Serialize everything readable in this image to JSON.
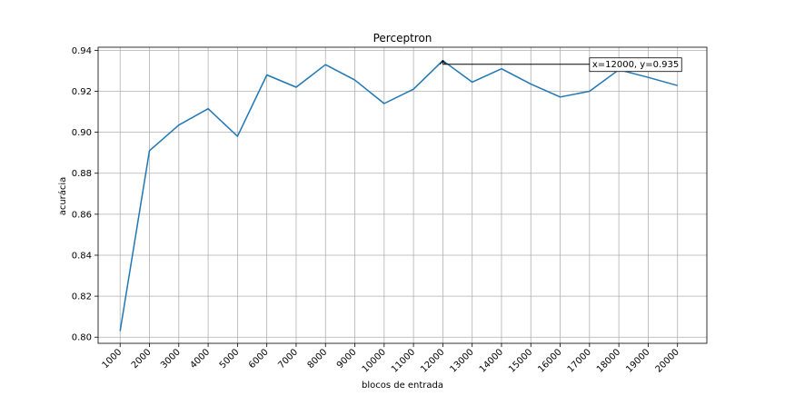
{
  "chart_data": {
    "type": "line",
    "title": "Perceptron",
    "xlabel": "blocos de entrada",
    "ylabel": "acurácia",
    "x": [
      1000,
      2000,
      3000,
      4000,
      5000,
      6000,
      7000,
      8000,
      9000,
      10000,
      11000,
      12000,
      13000,
      14000,
      15000,
      16000,
      17000,
      18000,
      19000,
      20000
    ],
    "x_tick_labels": [
      "1000",
      "2000",
      "3000",
      "4000",
      "5000",
      "6000",
      "7000",
      "8000",
      "9000",
      "10000",
      "11000",
      "12000",
      "13000",
      "14000",
      "15000",
      "16000",
      "17000",
      "18000",
      "19000",
      "20000"
    ],
    "xlim": [
      250,
      21000
    ],
    "series": [
      {
        "values": [
          0.803,
          0.891,
          0.9035,
          0.9115,
          0.898,
          0.928,
          0.922,
          0.933,
          0.9255,
          0.914,
          0.921,
          0.935,
          0.9245,
          0.931,
          0.9235,
          0.9172,
          0.92,
          0.9305,
          0.9268,
          0.9228
        ],
        "color": "#1f77b4"
      }
    ],
    "ylim": [
      0.797,
      0.9415
    ],
    "y_ticks": [
      0.8,
      0.82,
      0.84,
      0.86,
      0.88,
      0.9,
      0.92,
      0.94
    ],
    "y_tick_labels": [
      "0.80",
      "0.82",
      "0.84",
      "0.86",
      "0.88",
      "0.90",
      "0.92",
      "0.94"
    ],
    "grid": true,
    "annotation": {
      "text": "x=12000, y=0.935",
      "point": [
        12000,
        0.935
      ],
      "text_at": [
        17000,
        0.9332
      ]
    }
  }
}
